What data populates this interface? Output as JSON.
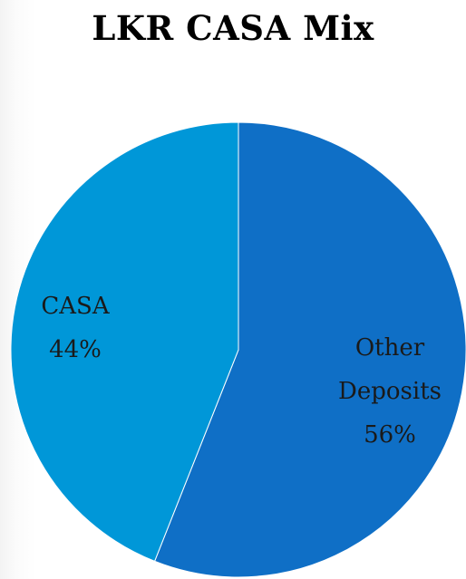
{
  "chart_data": {
    "type": "pie",
    "title": "LKR CASA Mix",
    "slices": [
      {
        "name": "Other Deposits",
        "label_lines": [
          "Other",
          "Deposits"
        ],
        "value": 56,
        "value_label": "56%",
        "color": "#0f6fc6"
      },
      {
        "name": "CASA",
        "label_lines": [
          "CASA"
        ],
        "value": 44,
        "value_label": "44%",
        "color": "#0097d8"
      }
    ],
    "start_angle_deg": 0,
    "direction": "clockwise",
    "legend": "none"
  }
}
